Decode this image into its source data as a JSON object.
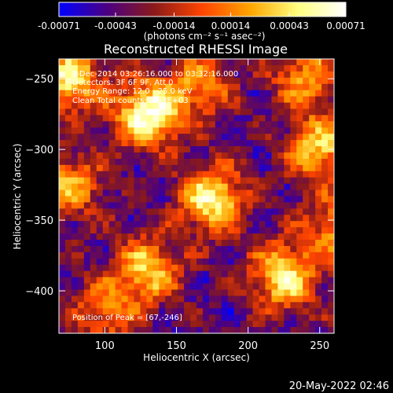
{
  "chart_data": {
    "type": "heatmap",
    "title": "Reconstructed RHESSI Image",
    "xlabel": "Heliocentric X (arcsec)",
    "ylabel": "Heliocentric Y (arcsec)",
    "xlim": [
      68,
      260
    ],
    "ylim": [
      -430,
      -236
    ],
    "xticks": [
      100,
      150,
      200,
      250
    ],
    "yticks": [
      -250,
      -300,
      -350,
      -400
    ],
    "colorbar": {
      "min": -0.00071,
      "max": 0.00071,
      "tick_values": [
        -0.00071,
        -0.00043,
        -0.00014,
        0.00014,
        0.00043,
        0.00071
      ],
      "tick_labels": [
        "-0.00071",
        "-0.00043",
        "-0.00014",
        "0.00014",
        "0.00043",
        "0.00071"
      ],
      "unit": "(photons cm⁻² s⁻¹ asec⁻²)",
      "colormap": [
        "#0000ff",
        "#4b0082",
        "#8b1a1a",
        "#ff4500",
        "#ffa500",
        "#ffff80",
        "#ffffff"
      ]
    },
    "grid": false,
    "peak": {
      "x": 67,
      "y": -246
    },
    "sources": [
      {
        "x": 75,
        "y": -250,
        "intensity": 0.85
      },
      {
        "x": 130,
        "y": -275,
        "intensity": 1.0
      },
      {
        "x": 165,
        "y": -255,
        "intensity": 0.55
      },
      {
        "x": 240,
        "y": -250,
        "intensity": 0.6
      },
      {
        "x": 75,
        "y": -325,
        "intensity": 0.65
      },
      {
        "x": 175,
        "y": -335,
        "intensity": 0.9
      },
      {
        "x": 250,
        "y": -300,
        "intensity": 0.75
      },
      {
        "x": 130,
        "y": -385,
        "intensity": 0.75
      },
      {
        "x": 225,
        "y": -390,
        "intensity": 0.85
      },
      {
        "x": 100,
        "y": -415,
        "intensity": 0.5
      },
      {
        "x": 260,
        "y": -355,
        "intensity": 0.55
      }
    ],
    "annotations": {
      "time": "?-Dec-2014 03:26:16.000 to 03:32:16.000",
      "detectors": "Detectors: 3F 6F 9F, Att 0",
      "energy": "Energy Range: 12.0 - 25.0 keV",
      "method": "Clean     Total counts: 2.53E+03",
      "peak_text": "Position of Peak = [67,-246]"
    }
  },
  "footer": {
    "timestamp": "20-May-2022 02:46"
  }
}
